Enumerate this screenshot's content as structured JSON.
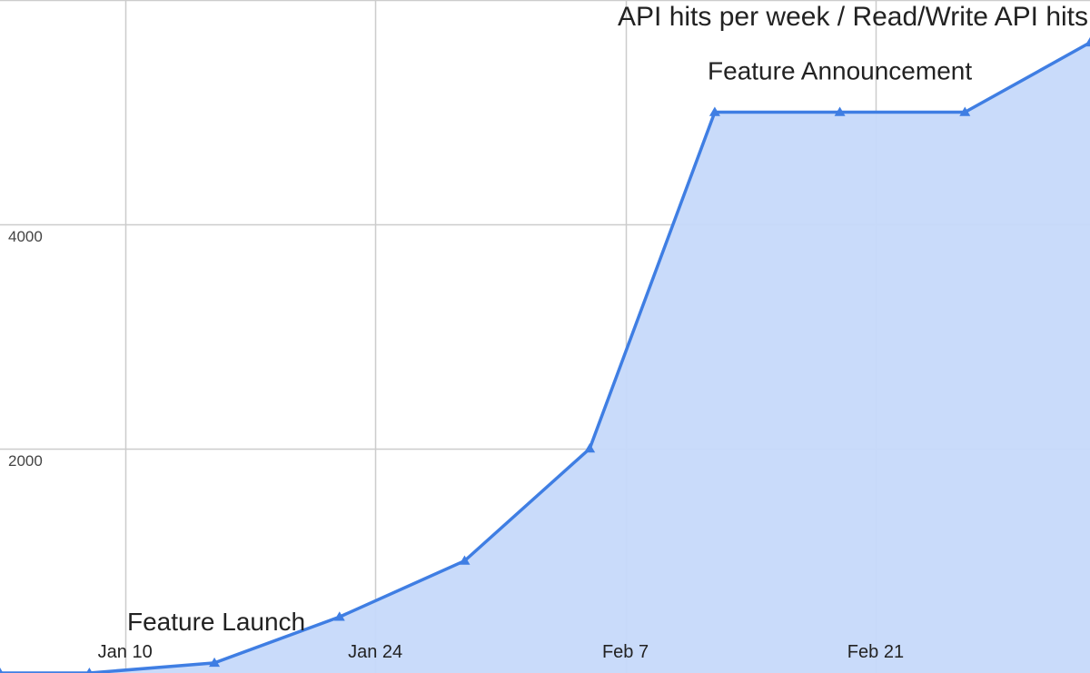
{
  "chart_data": {
    "type": "area",
    "title": "API hits per week / Read/Write API hits",
    "xlabel": "",
    "ylabel": "",
    "x_tick_labels": [
      "Jan 10",
      "Jan 24",
      "Feb 7",
      "Feb 21"
    ],
    "x_tick_dates": [
      "2022-01-10",
      "2022-01-24",
      "2022-02-07",
      "2022-02-21"
    ],
    "y_ticks": [
      2000,
      4000
    ],
    "x": [
      "2022-01-03",
      "2022-01-08",
      "2022-01-15",
      "2022-01-22",
      "2022-01-29",
      "2022-02-05",
      "2022-02-12",
      "2022-02-19",
      "2022-02-26",
      "2022-03-05"
    ],
    "series": [
      {
        "values": [
          0,
          0,
          90,
          500,
          1000,
          2000,
          5000,
          5000,
          5000,
          5620
        ]
      }
    ],
    "annotations": [
      {
        "text": "Feature Launch",
        "x": "2022-01-15"
      },
      {
        "text": "Feature Announcement",
        "x": "2022-02-19"
      }
    ],
    "xlim": [
      "2022-01-03",
      "2022-03-05"
    ],
    "ylim": [
      0,
      6000
    ],
    "grid": true,
    "colors": {
      "line": "#3f7ee3",
      "fill": "#c6d9fa",
      "grid": "#cccccc",
      "text": "#222222"
    }
  }
}
